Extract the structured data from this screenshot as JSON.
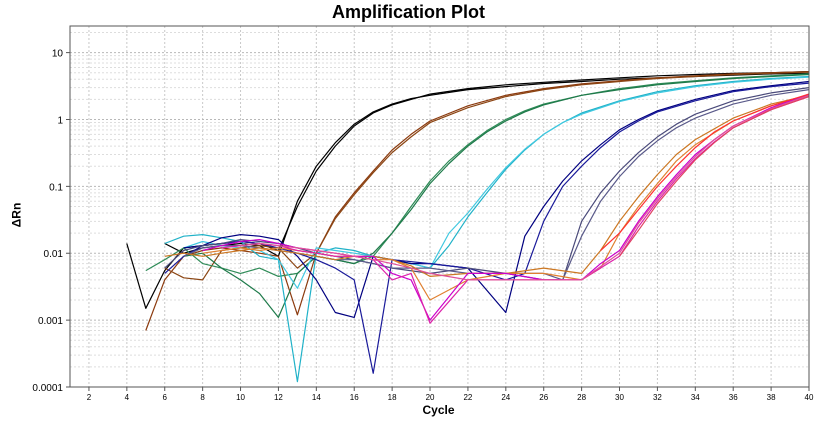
{
  "chart_data": {
    "type": "line",
    "title": "Amplification Plot",
    "xlabel": "Cycle",
    "ylabel": "ΔRn",
    "yscale": "log",
    "xlim": [
      1,
      40
    ],
    "ylim": [
      0.0001,
      25
    ],
    "x_ticks": [
      "2",
      "4",
      "6",
      "8",
      "10",
      "12",
      "14",
      "16",
      "18",
      "20",
      "22",
      "24",
      "26",
      "28",
      "30",
      "32",
      "34",
      "36",
      "38",
      "40"
    ],
    "y_ticks": [
      "10",
      "1",
      "0.1",
      "0.01",
      "0.001",
      "0.0001"
    ],
    "grid": true,
    "series": [
      {
        "color": "#000000",
        "x": [
          4,
          5,
          6,
          7,
          8,
          9,
          10,
          11,
          12,
          13,
          14,
          15,
          16,
          17,
          18,
          19,
          20,
          22,
          24,
          26,
          28,
          30,
          32,
          34,
          36,
          38,
          40
        ],
        "y": [
          0.014,
          0.0015,
          0.0055,
          0.012,
          0.013,
          0.014,
          0.015,
          0.014,
          0.011,
          0.05,
          0.17,
          0.4,
          0.8,
          1.25,
          1.65,
          2.0,
          2.4,
          2.9,
          3.3,
          3.6,
          3.9,
          4.2,
          4.5,
          4.7,
          4.9,
          5.0,
          5.2
        ]
      },
      {
        "color": "#000000",
        "x": [
          6,
          7,
          8,
          9,
          10,
          11,
          12,
          13,
          14,
          15,
          16,
          17,
          18,
          19,
          20,
          22,
          24,
          26,
          28,
          30,
          32,
          34,
          36,
          38,
          40
        ],
        "y": [
          0.014,
          0.01,
          0.012,
          0.013,
          0.014,
          0.013,
          0.009,
          0.06,
          0.2,
          0.45,
          0.85,
          1.3,
          1.7,
          2.05,
          2.3,
          2.8,
          3.1,
          3.45,
          3.7,
          4.0,
          4.2,
          4.4,
          4.6,
          4.8,
          4.9
        ]
      },
      {
        "color": "#8B3A0E",
        "x": [
          5,
          6,
          7,
          8,
          9,
          10,
          11,
          12,
          13,
          14,
          15,
          16,
          17,
          18,
          19,
          20,
          22,
          24,
          26,
          28,
          30,
          32,
          34,
          36,
          38,
          40
        ],
        "y": [
          0.0007,
          0.004,
          0.009,
          0.011,
          0.012,
          0.011,
          0.01,
          0.009,
          0.0012,
          0.01,
          0.035,
          0.08,
          0.17,
          0.35,
          0.6,
          0.95,
          1.6,
          2.3,
          2.9,
          3.4,
          3.8,
          4.2,
          4.5,
          4.8,
          5.0,
          5.2
        ]
      },
      {
        "color": "#8B4513",
        "x": [
          6,
          7,
          8,
          9,
          10,
          11,
          12,
          13,
          14,
          15,
          16,
          17,
          18,
          19,
          20,
          22,
          24,
          26,
          28,
          30,
          32,
          34,
          36,
          38,
          40
        ],
        "y": [
          0.006,
          0.0043,
          0.004,
          0.011,
          0.012,
          0.013,
          0.012,
          0.006,
          0.01,
          0.033,
          0.075,
          0.16,
          0.32,
          0.55,
          0.9,
          1.5,
          2.2,
          2.8,
          3.3,
          3.7,
          4.1,
          4.4,
          4.7,
          4.9,
          5.1
        ]
      },
      {
        "color": "#2E8B57",
        "x": [
          5,
          6,
          7,
          8,
          9,
          10,
          11,
          12,
          13,
          14,
          15,
          16,
          17,
          18,
          19,
          20,
          21,
          22,
          23,
          24,
          25,
          26,
          28,
          30,
          32,
          34,
          36,
          38,
          40
        ],
        "y": [
          0.0055,
          0.008,
          0.012,
          0.007,
          0.006,
          0.005,
          0.006,
          0.0045,
          0.005,
          0.009,
          0.008,
          0.007,
          0.009,
          0.02,
          0.05,
          0.12,
          0.24,
          0.42,
          0.68,
          1.0,
          1.35,
          1.7,
          2.3,
          2.9,
          3.4,
          3.8,
          4.2,
          4.5,
          4.8
        ]
      },
      {
        "color": "#1E7A4A",
        "x": [
          7,
          8,
          9,
          10,
          11,
          12,
          13,
          14,
          15,
          16,
          17,
          18,
          19,
          20,
          21,
          22,
          23,
          24,
          25,
          26,
          28,
          30,
          32,
          34,
          36,
          38,
          40
        ],
        "y": [
          0.009,
          0.01,
          0.006,
          0.004,
          0.0025,
          0.0011,
          0.005,
          0.009,
          0.008,
          0.007,
          0.01,
          0.02,
          0.045,
          0.11,
          0.22,
          0.4,
          0.65,
          0.95,
          1.3,
          1.65,
          2.3,
          2.8,
          3.3,
          3.7,
          4.1,
          4.4,
          4.7
        ]
      },
      {
        "color": "#20B2C8",
        "x": [
          6,
          7,
          8,
          9,
          10,
          11,
          12,
          13,
          14,
          15,
          16,
          17,
          18,
          19,
          20,
          21,
          22,
          23,
          24,
          25,
          26,
          27,
          28,
          30,
          32,
          34,
          36,
          38,
          40
        ],
        "y": [
          0.014,
          0.018,
          0.019,
          0.017,
          0.015,
          0.009,
          0.008,
          0.00012,
          0.01,
          0.012,
          0.011,
          0.009,
          0.008,
          0.007,
          0.006,
          0.013,
          0.035,
          0.08,
          0.18,
          0.35,
          0.6,
          0.9,
          1.25,
          1.9,
          2.6,
          3.2,
          3.7,
          4.1,
          4.4
        ]
      },
      {
        "color": "#40C8E0",
        "x": [
          7,
          8,
          9,
          10,
          11,
          12,
          13,
          14,
          15,
          16,
          17,
          18,
          19,
          20,
          21,
          22,
          23,
          24,
          25,
          26,
          27,
          28,
          30,
          32,
          34,
          36,
          38,
          40
        ],
        "y": [
          0.012,
          0.015,
          0.013,
          0.012,
          0.011,
          0.008,
          0.003,
          0.012,
          0.011,
          0.01,
          0.009,
          0.008,
          0.007,
          0.006,
          0.02,
          0.04,
          0.09,
          0.19,
          0.36,
          0.6,
          0.9,
          1.2,
          1.85,
          2.5,
          3.1,
          3.6,
          4.0,
          4.3
        ]
      },
      {
        "color": "#000080",
        "x": [
          7,
          8,
          9,
          10,
          11,
          12,
          13,
          14,
          15,
          16,
          17,
          18,
          19,
          20,
          22,
          24,
          25,
          26,
          27,
          28,
          29,
          30,
          31,
          32,
          34,
          36,
          38,
          40
        ],
        "y": [
          0.012,
          0.013,
          0.017,
          0.019,
          0.018,
          0.016,
          0.009,
          0.004,
          0.0013,
          0.0011,
          0.009,
          0.008,
          0.007,
          0.007,
          0.006,
          0.0013,
          0.018,
          0.05,
          0.12,
          0.24,
          0.42,
          0.7,
          1.0,
          1.35,
          2.0,
          2.7,
          3.2,
          3.7
        ]
      },
      {
        "color": "#1A1A9A",
        "x": [
          6,
          7,
          8,
          9,
          10,
          11,
          12,
          13,
          14,
          15,
          16,
          17,
          18,
          20,
          22,
          24,
          25,
          26,
          27,
          28,
          29,
          30,
          31,
          32,
          34,
          36,
          38,
          40
        ],
        "y": [
          0.005,
          0.009,
          0.013,
          0.014,
          0.015,
          0.014,
          0.012,
          0.01,
          0.008,
          0.006,
          0.004,
          0.00016,
          0.008,
          0.007,
          0.006,
          0.004,
          0.005,
          0.03,
          0.1,
          0.2,
          0.38,
          0.65,
          0.95,
          1.3,
          1.9,
          2.6,
          3.1,
          3.5
        ]
      },
      {
        "color": "#4A4A7A",
        "x": [
          6,
          7,
          8,
          9,
          10,
          11,
          12,
          13,
          14,
          15,
          16,
          17,
          18,
          20,
          22,
          24,
          26,
          27,
          28,
          29,
          30,
          31,
          32,
          33,
          34,
          36,
          38,
          40
        ],
        "y": [
          0.006,
          0.011,
          0.013,
          0.014,
          0.016,
          0.015,
          0.014,
          0.012,
          0.01,
          0.009,
          0.008,
          0.007,
          0.006,
          0.005,
          0.006,
          0.005,
          0.004,
          0.004,
          0.03,
          0.08,
          0.17,
          0.32,
          0.55,
          0.85,
          1.2,
          1.9,
          2.5,
          3.0
        ]
      },
      {
        "color": "#5A5A8A",
        "x": [
          7,
          8,
          9,
          10,
          11,
          12,
          13,
          14,
          15,
          16,
          17,
          18,
          20,
          22,
          24,
          26,
          27,
          28,
          29,
          30,
          31,
          32,
          33,
          34,
          36,
          38,
          40
        ],
        "y": [
          0.009,
          0.012,
          0.013,
          0.013,
          0.012,
          0.011,
          0.01,
          0.009,
          0.008,
          0.008,
          0.007,
          0.006,
          0.006,
          0.005,
          0.005,
          0.005,
          0.004,
          0.018,
          0.06,
          0.14,
          0.28,
          0.48,
          0.75,
          1.05,
          1.7,
          2.3,
          2.8
        ]
      },
      {
        "color": "#CC7722",
        "x": [
          6,
          7,
          8,
          9,
          10,
          11,
          12,
          13,
          14,
          15,
          16,
          17,
          18,
          19,
          20,
          22,
          24,
          26,
          28,
          29,
          30,
          31,
          32,
          33,
          34,
          36,
          38,
          40
        ],
        "y": [
          0.009,
          0.01,
          0.009,
          0.01,
          0.011,
          0.012,
          0.011,
          0.01,
          0.009,
          0.008,
          0.009,
          0.009,
          0.008,
          0.0065,
          0.0045,
          0.005,
          0.005,
          0.006,
          0.005,
          0.011,
          0.03,
          0.07,
          0.15,
          0.3,
          0.5,
          1.05,
          1.7,
          2.3
        ]
      },
      {
        "color": "#E08030",
        "x": [
          8,
          9,
          10,
          11,
          12,
          13,
          14,
          15,
          16,
          17,
          18,
          19,
          20,
          22,
          24,
          26,
          28,
          29,
          30,
          31,
          32,
          33,
          34,
          36,
          38,
          40
        ],
        "y": [
          0.01,
          0.011,
          0.012,
          0.011,
          0.012,
          0.011,
          0.01,
          0.009,
          0.009,
          0.008,
          0.008,
          0.006,
          0.002,
          0.004,
          0.005,
          0.005,
          0.004,
          0.006,
          0.02,
          0.05,
          0.11,
          0.24,
          0.42,
          0.95,
          1.6,
          2.2
        ]
      },
      {
        "color": "#CC00CC",
        "x": [
          8,
          9,
          10,
          11,
          12,
          13,
          14,
          15,
          16,
          17,
          18,
          19,
          20,
          22,
          24,
          26,
          28,
          29,
          30,
          31,
          32,
          33,
          34,
          35,
          36,
          38,
          40
        ],
        "y": [
          0.011,
          0.013,
          0.015,
          0.016,
          0.014,
          0.012,
          0.011,
          0.01,
          0.009,
          0.009,
          0.005,
          0.004,
          0.001,
          0.005,
          0.005,
          0.004,
          0.004,
          0.007,
          0.011,
          0.03,
          0.07,
          0.15,
          0.3,
          0.5,
          0.8,
          1.5,
          2.4
        ]
      },
      {
        "color": "#DD22AA",
        "x": [
          9,
          10,
          11,
          12,
          13,
          14,
          15,
          16,
          17,
          18,
          19,
          20,
          22,
          24,
          26,
          28,
          30,
          31,
          32,
          33,
          34,
          35,
          36,
          38,
          40
        ],
        "y": [
          0.012,
          0.013,
          0.014,
          0.013,
          0.011,
          0.01,
          0.009,
          0.009,
          0.008,
          0.004,
          0.005,
          0.0009,
          0.004,
          0.004,
          0.004,
          0.004,
          0.009,
          0.025,
          0.06,
          0.13,
          0.26,
          0.46,
          0.75,
          1.4,
          2.2
        ]
      },
      {
        "color": "#E0509A",
        "x": [
          10,
          11,
          12,
          13,
          14,
          15,
          16,
          17,
          18,
          19,
          20,
          22,
          24,
          26,
          28,
          30,
          31,
          32,
          33,
          34,
          35,
          36,
          38,
          40
        ],
        "y": [
          0.013,
          0.014,
          0.013,
          0.012,
          0.011,
          0.01,
          0.009,
          0.008,
          0.007,
          0.006,
          0.005,
          0.004,
          0.004,
          0.004,
          0.004,
          0.01,
          0.028,
          0.065,
          0.14,
          0.28,
          0.5,
          0.8,
          1.45,
          2.3
        ]
      },
      {
        "color": "#FF3030",
        "x": [
          29,
          30,
          31,
          32,
          33,
          34,
          35,
          36,
          38,
          40
        ],
        "y": [
          0.011,
          0.02,
          0.045,
          0.1,
          0.2,
          0.38,
          0.65,
          0.95,
          1.6,
          2.4
        ]
      },
      {
        "color": "#E04060",
        "x": [
          30,
          31,
          32,
          33,
          34,
          35,
          36,
          38,
          40
        ],
        "y": [
          0.009,
          0.022,
          0.055,
          0.12,
          0.25,
          0.45,
          0.75,
          1.4,
          2.2
        ]
      }
    ]
  }
}
